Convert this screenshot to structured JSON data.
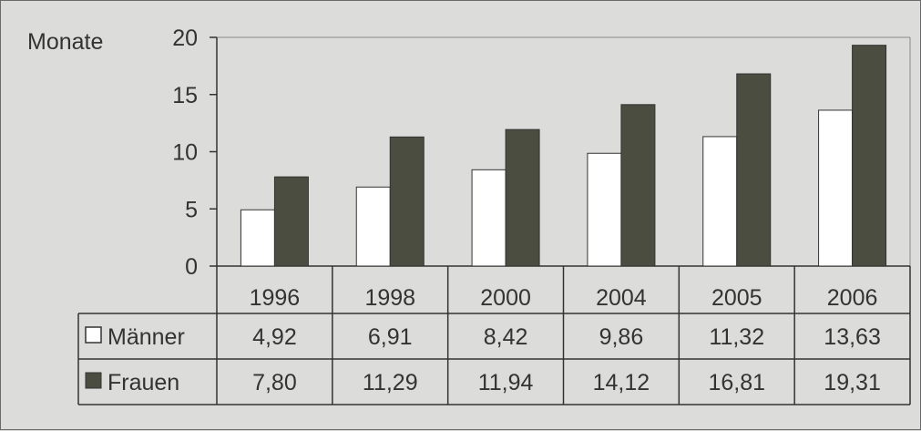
{
  "chart_data": {
    "type": "bar",
    "ylabel": "Monate",
    "ylim": [
      0,
      20
    ],
    "yticks": [
      0,
      5,
      10,
      15,
      20
    ],
    "categories": [
      "1996",
      "1998",
      "2000",
      "2004",
      "2005",
      "2006"
    ],
    "series": [
      {
        "name": "Männer",
        "values": [
          "4,92",
          "6,91",
          "8,42",
          "9,86",
          "11,32",
          "13,63"
        ],
        "numeric": [
          4.92,
          6.91,
          8.42,
          9.86,
          11.32,
          13.63
        ],
        "color": "#ffffff",
        "legend_symbol": "☐"
      },
      {
        "name": "Frauen",
        "values": [
          "7,80",
          "11,29",
          "11,94",
          "14,12",
          "16,81",
          "19,31"
        ],
        "numeric": [
          7.8,
          11.29,
          11.94,
          14.12,
          16.81,
          19.31
        ],
        "color": "#4a4d40",
        "legend_symbol": "■"
      }
    ],
    "grid": false,
    "legend_placement": "data-table-left"
  }
}
